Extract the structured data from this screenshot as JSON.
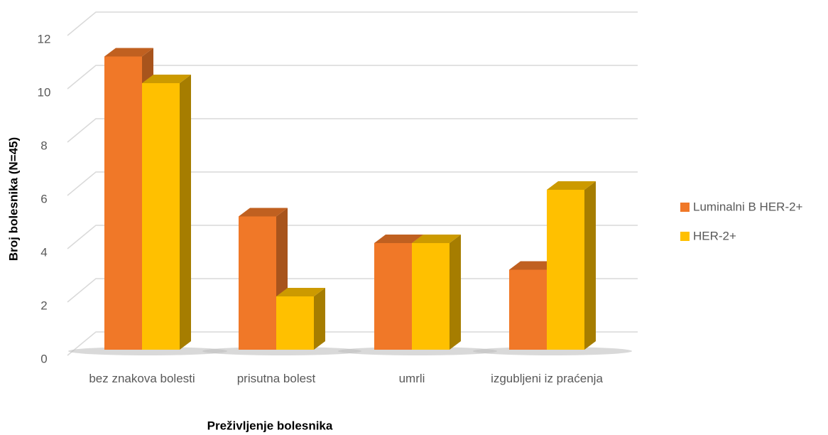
{
  "chart_data": {
    "type": "bar3d",
    "x_label": "Preživljenje bolesnika",
    "y_label": "Broj bolesnika (N=45)",
    "categories": [
      "bez znakova bolesti",
      "prisutna bolest",
      "umrli",
      "izgubljeni iz praćenja"
    ],
    "series": [
      {
        "name": "Luminalni B HER-2+",
        "color": "#f07828",
        "values": [
          11,
          5,
          4,
          3
        ]
      },
      {
        "name": "HER-2+",
        "color": "#ffc000",
        "values": [
          10,
          2,
          4,
          6
        ]
      }
    ],
    "ylim": [
      0,
      12
    ],
    "yticks": [
      0,
      2,
      4,
      6,
      8,
      10,
      12
    ],
    "grid": true,
    "legend": "right"
  }
}
